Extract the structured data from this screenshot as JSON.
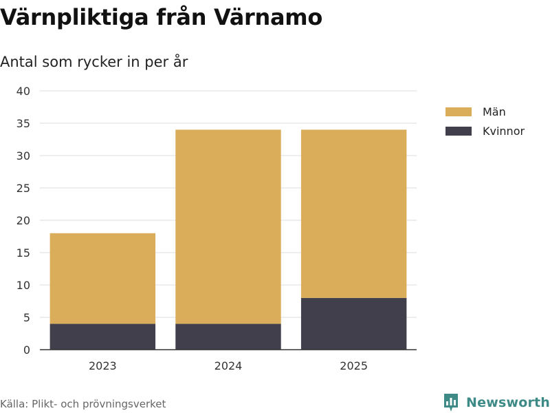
{
  "header": {
    "title": "Värnpliktiga från Värnamo",
    "subtitle": "Antal som rycker in per år"
  },
  "footer": {
    "source": "Källa: Plikt- och prövningsverket",
    "brand": "Newsworthy"
  },
  "colors": {
    "men": "#d9ad59",
    "women": "#423f4d",
    "grid": "#dddddd",
    "axis": "#333333",
    "brand": "#3d8a87"
  },
  "chart_data": {
    "type": "bar",
    "stacked": true,
    "categories": [
      "2023",
      "2024",
      "2025"
    ],
    "series": [
      {
        "name": "Kvinnor",
        "values": [
          4,
          4,
          8
        ]
      },
      {
        "name": "Män",
        "values": [
          14,
          30,
          26
        ]
      }
    ],
    "ylim": [
      0,
      40
    ],
    "yticks": [
      0,
      5,
      10,
      15,
      20,
      25,
      30,
      35,
      40
    ],
    "grid": true,
    "legend_position": "right",
    "legend": [
      "Män",
      "Kvinnor"
    ]
  }
}
